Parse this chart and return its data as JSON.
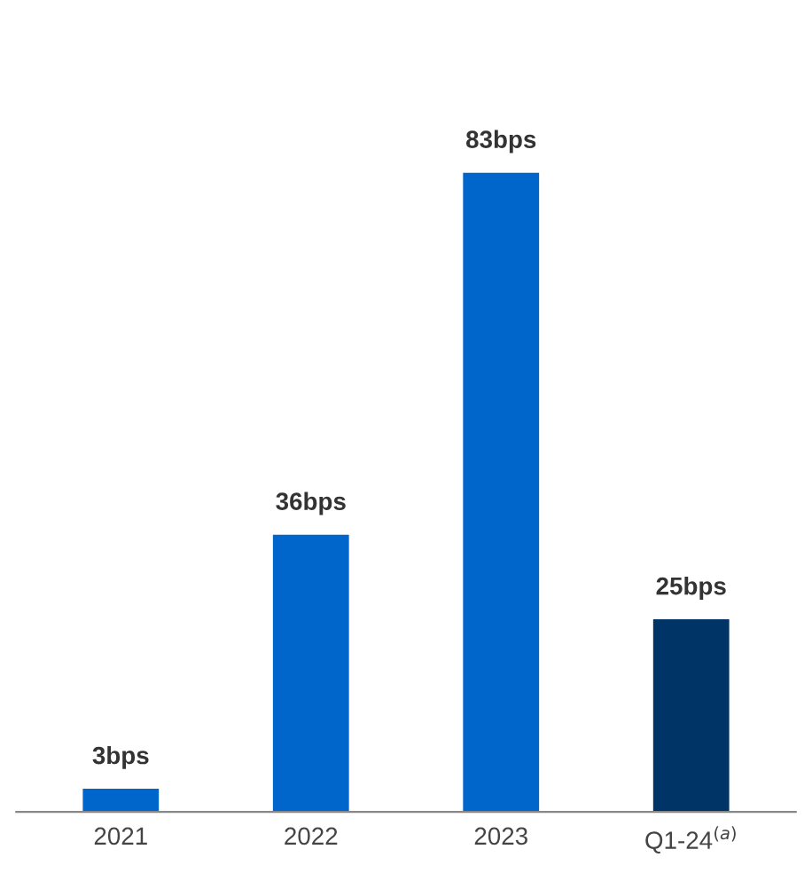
{
  "chart_data": {
    "type": "bar",
    "categories": [
      "2021",
      "2022",
      "2023",
      "Q1-24$^{(a)}$"
    ],
    "values": [
      3,
      36,
      83,
      25
    ],
    "colors": [
      "#0066cc",
      "#0066cc",
      "#0066cc",
      "#003366"
    ],
    "value_labels": [
      "3bps",
      "36bps",
      "83bps",
      "25bps"
    ],
    "tick_labels": "x",
    "grid": false,
    "legend": false
  }
}
